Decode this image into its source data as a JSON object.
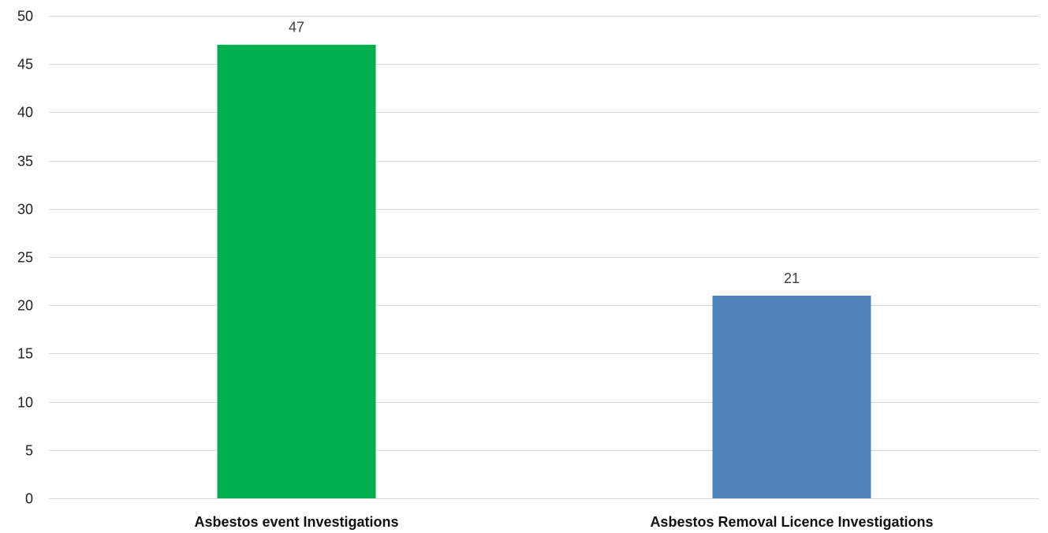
{
  "chart_data": {
    "type": "bar",
    "title": "",
    "xlabel": "",
    "ylabel": "",
    "categories": [
      "Asbestos event Investigations",
      "Asbestos Removal Licence Investigations"
    ],
    "values": [
      47,
      21
    ],
    "bar_colors": [
      "#00B050",
      "#4F81BD"
    ],
    "data_labels": [
      "47",
      "21"
    ],
    "ylim": [
      0,
      50
    ],
    "y_ticks": [
      0,
      5,
      10,
      15,
      20,
      25,
      30,
      35,
      40,
      45,
      50
    ],
    "y_tick_labels": [
      "0",
      "5",
      "10",
      "15",
      "20",
      "25",
      "30",
      "35",
      "40",
      "45",
      "50"
    ],
    "grid": true,
    "grid_color": "#D9D9D9",
    "legend": "none"
  }
}
